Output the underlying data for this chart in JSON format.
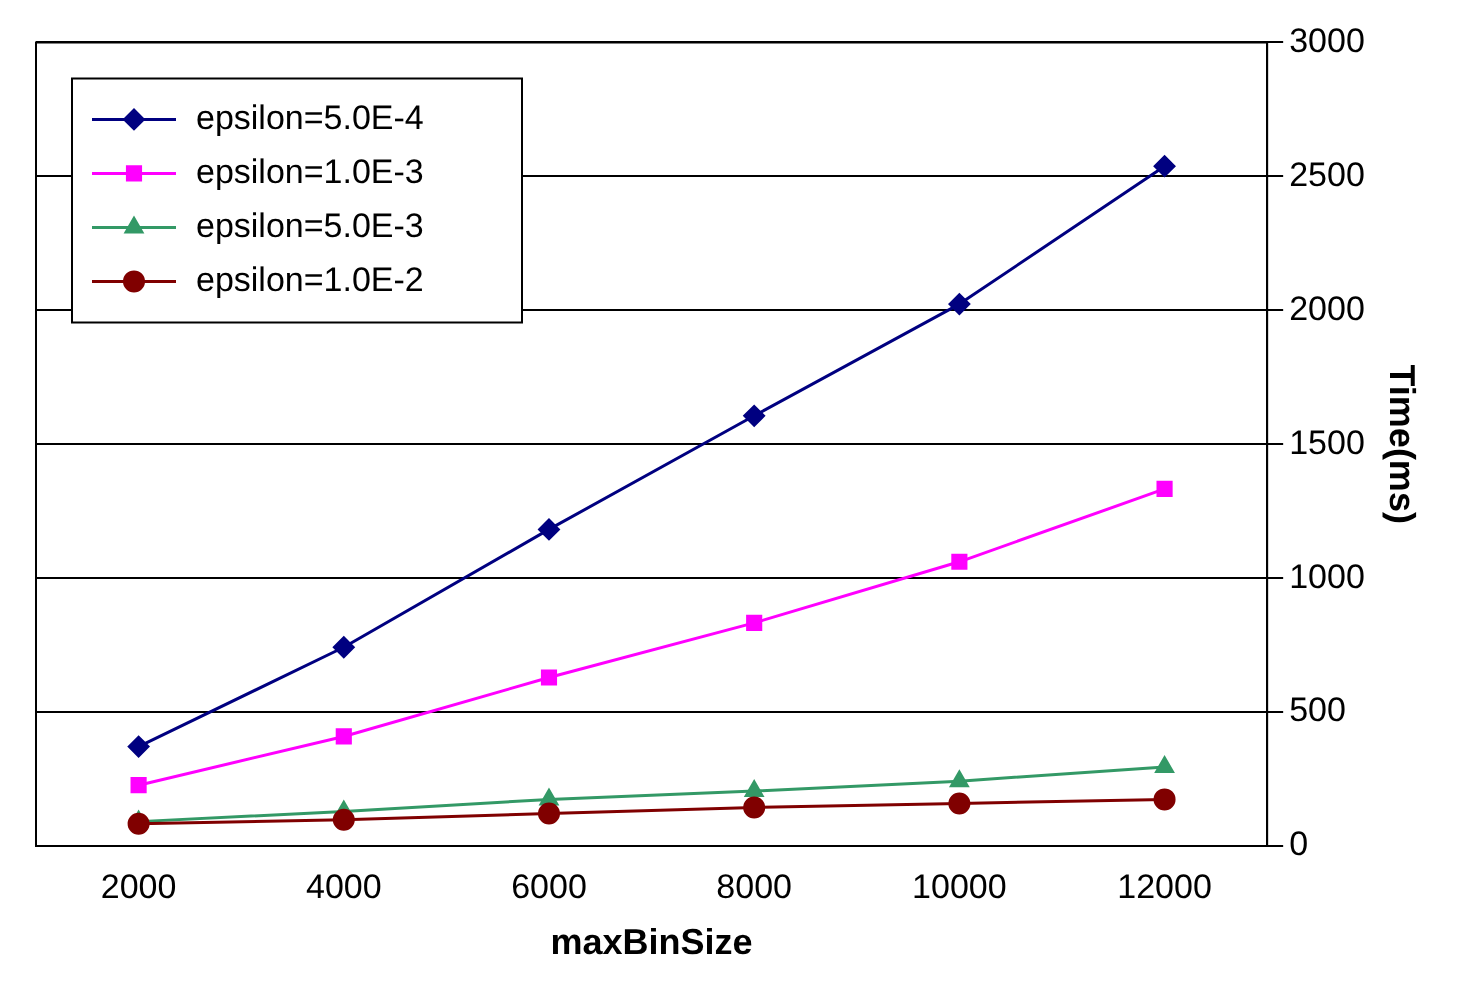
{
  "chart_data": {
    "type": "line",
    "xlabel": "maxBinSize",
    "ylabel": "Time(ms)",
    "categories": [
      "2000",
      "4000",
      "6000",
      "8000",
      "10000",
      "12000"
    ],
    "series": [
      {
        "name": "epsilon=5.0E-4",
        "color": "#000080",
        "marker": "diamond",
        "values": [
          371,
          742,
          1182,
          1606,
          2023,
          2538
        ]
      },
      {
        "name": "epsilon=1.0E-3",
        "color": "#ff00ff",
        "marker": "square",
        "values": [
          227,
          409,
          629,
          833,
          1061,
          1333
        ]
      },
      {
        "name": "epsilon=5.0E-3",
        "color": "#339966",
        "marker": "triangle",
        "values": [
          91,
          129,
          174,
          205,
          242,
          295
        ]
      },
      {
        "name": "epsilon=1.0E-2",
        "color": "#800000",
        "marker": "circle",
        "values": [
          83,
          98,
          121,
          144,
          159,
          174
        ]
      }
    ],
    "ylim": [
      0,
      3000
    ],
    "yticks": [
      0,
      500,
      1000,
      1500,
      2000,
      2500,
      3000
    ],
    "grid": "y",
    "legend": "top left",
    "line_style": "solid"
  }
}
